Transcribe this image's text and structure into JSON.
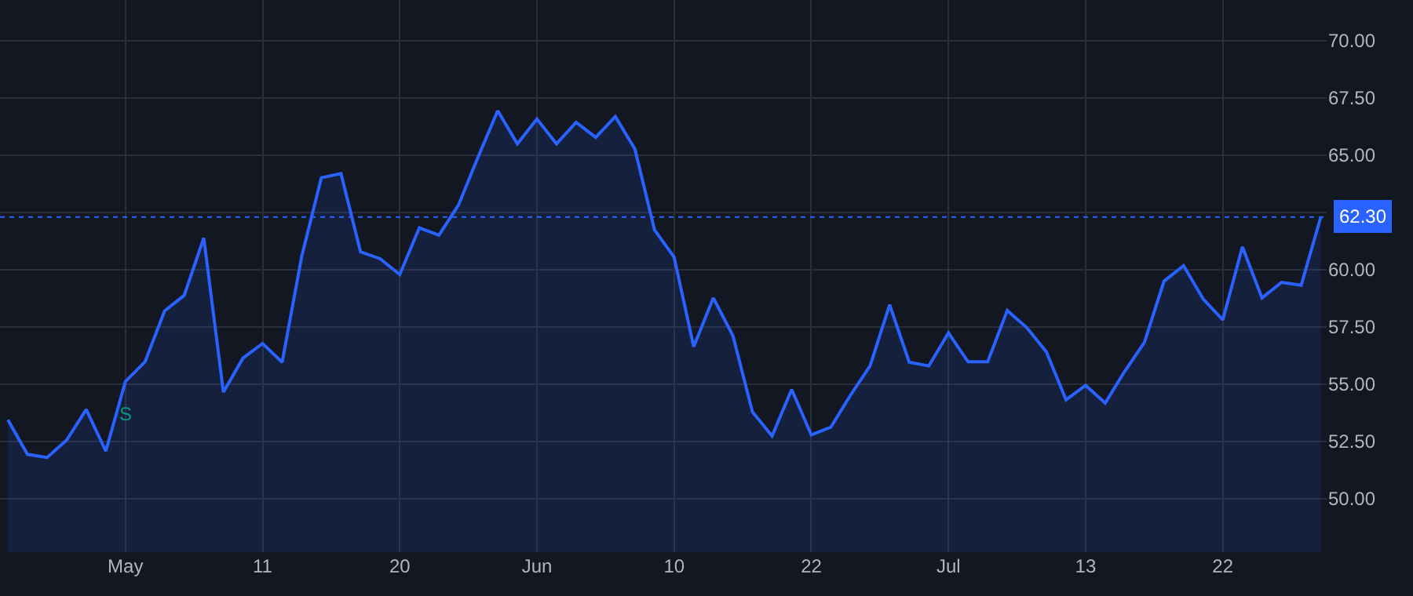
{
  "chart_data": {
    "type": "area",
    "categories": [
      null,
      null,
      null,
      null,
      null,
      null,
      "May",
      null,
      null,
      null,
      null,
      null,
      null,
      "11",
      null,
      null,
      null,
      null,
      null,
      null,
      "20",
      null,
      null,
      null,
      null,
      null,
      null,
      "Jun",
      null,
      null,
      null,
      null,
      null,
      null,
      "10",
      null,
      null,
      null,
      null,
      null,
      null,
      "22",
      null,
      null,
      null,
      null,
      null,
      null,
      "Jul",
      null,
      null,
      null,
      null,
      null,
      null,
      "13",
      null,
      null,
      null,
      null,
      null,
      null,
      "22",
      null,
      null,
      null,
      null,
      null
    ],
    "series": [
      {
        "color": "#2962ff",
        "values": [
          53.45,
          51.94,
          51.8,
          52.56,
          53.9,
          52.08,
          55.12,
          55.98,
          58.2,
          58.88,
          61.39,
          54.66,
          56.14,
          56.78,
          55.96,
          60.6,
          64.02,
          64.2,
          60.78,
          60.48,
          59.79,
          61.83,
          61.51,
          62.83,
          64.93,
          66.94,
          65.5,
          66.58,
          65.5,
          66.44,
          65.78,
          66.69,
          65.27,
          61.74,
          60.55,
          56.64,
          58.77,
          57.12,
          53.79,
          52.74,
          54.77,
          52.79,
          53.13,
          54.52,
          55.8,
          58.47,
          55.96,
          55.8,
          57.24,
          55.98,
          55.98,
          58.22,
          57.47,
          56.41,
          54.32,
          54.95,
          54.18,
          55.57,
          56.83,
          59.5,
          60.18,
          58.72,
          57.81,
          61.0,
          58.77,
          59.45,
          59.32,
          62.3
        ]
      }
    ],
    "ylim": [
      47.67,
      71.78
    ],
    "yticks": [
      {
        "value": 50,
        "label": "50.00"
      },
      {
        "value": 52.5,
        "label": "52.50"
      },
      {
        "value": 55,
        "label": "55.00"
      },
      {
        "value": 57.5,
        "label": "57.50"
      },
      {
        "value": 60,
        "label": "60.00"
      },
      {
        "value": 62.5,
        "label": null
      },
      {
        "value": 65,
        "label": "65.00"
      },
      {
        "value": 67.5,
        "label": "67.50"
      },
      {
        "value": 70,
        "label": "70.00"
      }
    ],
    "grid": true,
    "marker": "none",
    "ref_lines": [
      {
        "axis": "y",
        "value": 62.3,
        "label": "62.30",
        "color": "#2962ff",
        "line_style": "dotted"
      }
    ],
    "annotations": [
      {
        "text": "S",
        "x": "May",
        "y": 55.12
      }
    ]
  }
}
